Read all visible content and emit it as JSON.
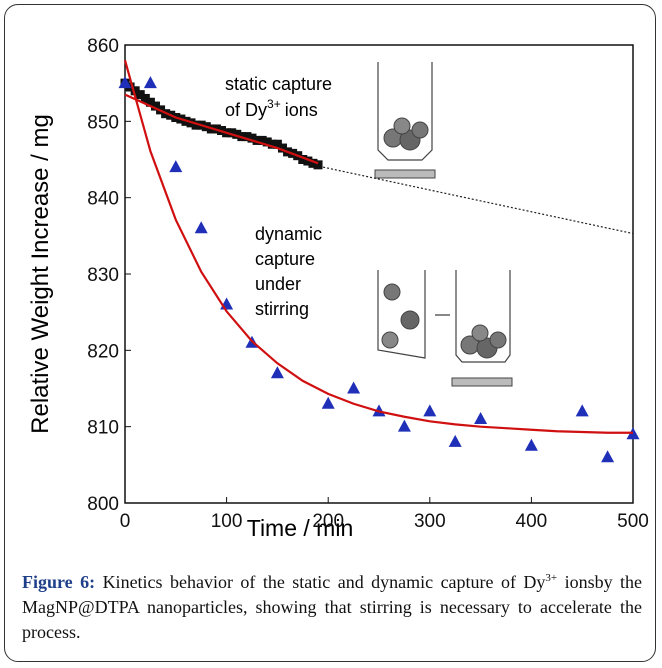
{
  "chart_data": {
    "type": "scatter",
    "xlabel": "Time / min",
    "ylabel": "Relative Weight Increase / mg",
    "xlim": [
      0,
      500
    ],
    "ylim": [
      800,
      860
    ],
    "xticks": [
      0,
      100,
      200,
      300,
      400,
      500
    ],
    "yticks": [
      800,
      810,
      820,
      830,
      840,
      850,
      860
    ],
    "annotations": {
      "static": [
        "static capture",
        "of Dy",
        "3+",
        "ions"
      ],
      "dynamic": [
        "dynamic",
        "capture",
        "under",
        "stirring"
      ]
    },
    "series": [
      {
        "marker": "square",
        "color": "#111111",
        "x": [
          0,
          5,
          10,
          15,
          20,
          25,
          30,
          35,
          40,
          45,
          50,
          55,
          60,
          65,
          70,
          75,
          80,
          85,
          90,
          95,
          100,
          105,
          110,
          115,
          120,
          125,
          130,
          135,
          140,
          145,
          150,
          155,
          160,
          165,
          170,
          175,
          180,
          185,
          190
        ],
        "values": [
          855,
          854.5,
          854,
          853.5,
          853,
          852.5,
          852,
          851.5,
          851,
          850.8,
          850.5,
          850.3,
          850,
          849.8,
          849.5,
          849.5,
          849.3,
          849,
          849,
          848.8,
          848.5,
          848.5,
          848.3,
          848,
          848,
          847.8,
          847.5,
          847.5,
          847.3,
          847,
          847,
          846.5,
          846,
          845.8,
          845.5,
          845,
          844.8,
          844.5,
          844.3
        ]
      },
      {
        "marker": "triangle",
        "color": "#1f2fb8",
        "x": [
          0,
          25,
          50,
          75,
          100,
          125,
          150,
          200,
          225,
          250,
          275,
          300,
          325,
          350,
          400,
          450,
          475,
          500
        ],
        "values": [
          855,
          855,
          844,
          836,
          826,
          821,
          817,
          813,
          815,
          812,
          810,
          812,
          808,
          811,
          807.5,
          812,
          806,
          809
        ]
      },
      {
        "marker": "line",
        "color": "#d01010",
        "x": [
          0,
          50,
          100,
          150,
          190
        ],
        "values": [
          853.5,
          850.5,
          848.5,
          846.5,
          844.5
        ]
      },
      {
        "marker": "dotted",
        "color": "#222222",
        "x": [
          195,
          500
        ],
        "values": [
          844,
          835.3
        ]
      },
      {
        "marker": "line",
        "color": "#d01010",
        "x": [
          0,
          25,
          50,
          75,
          100,
          125,
          150,
          175,
          200,
          225,
          250,
          275,
          300,
          325,
          350,
          375,
          400,
          425,
          450,
          475,
          500
        ],
        "values": [
          858,
          846.1,
          837.1,
          830.3,
          825.1,
          821.2,
          818.3,
          816,
          814.3,
          813,
          812,
          811.3,
          810.7,
          810.3,
          810,
          809.8,
          809.6,
          809.4,
          809.3,
          809.2,
          809.2
        ]
      }
    ]
  },
  "caption": {
    "label": "Figure 6:",
    "text_before": "Kinetics behavior of the static and dynamic capture of Dy",
    "superscript": "3+",
    "text_after": "ionsby the MagNP@DTPA nanoparticles, showing that stirring is necessary to accelerate the process."
  }
}
